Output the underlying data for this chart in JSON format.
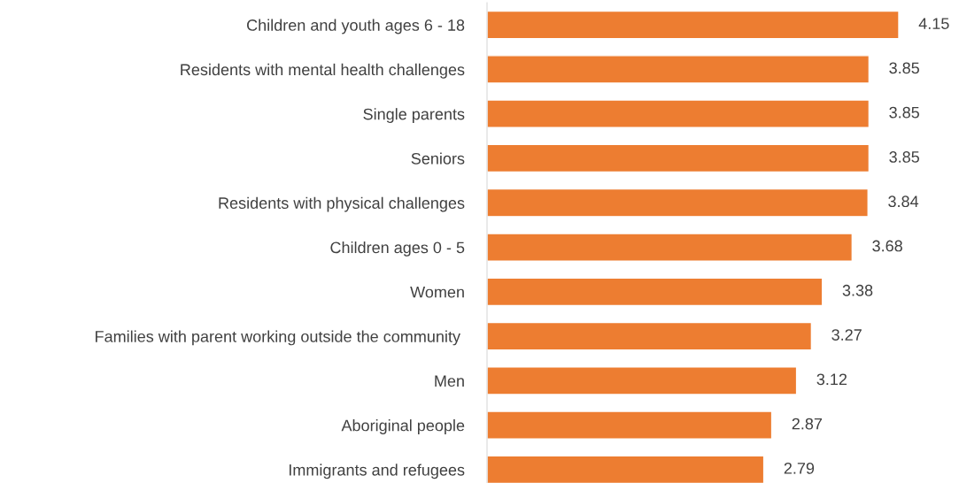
{
  "chart_data": {
    "type": "bar",
    "orientation": "horizontal",
    "categories": [
      "Children and youth ages 6 - 18",
      "Residents with mental health challenges",
      "Single parents",
      "Seniors",
      "Residents with physical challenges",
      "Children ages 0 - 5",
      "Women",
      "Families with parent working outside the community ",
      "Men",
      "Aboriginal people",
      "Immigrants and refugees"
    ],
    "values": [
      4.15,
      3.85,
      3.85,
      3.85,
      3.84,
      3.68,
      3.38,
      3.27,
      3.12,
      2.87,
      2.79
    ],
    "color": "#ed7d31",
    "data_labels": true,
    "tick_labels": "y",
    "grid": false,
    "legend": false
  }
}
